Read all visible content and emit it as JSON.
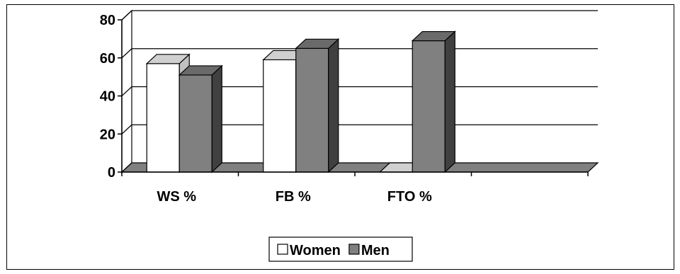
{
  "chart_data": {
    "type": "bar",
    "title": "",
    "xlabel": "",
    "ylabel": "",
    "categories": [
      "WS %",
      "FB %",
      "FTO %",
      ""
    ],
    "series": [
      {
        "name": "Women",
        "values": [
          57,
          59,
          0,
          null
        ],
        "color": "#ffffff"
      },
      {
        "name": "Men",
        "values": [
          51,
          65,
          69,
          null
        ],
        "color": "#808080"
      }
    ],
    "ylim": [
      0,
      80
    ],
    "yticks": [
      "0",
      "20",
      "40",
      "60",
      "80"
    ],
    "grid": true,
    "legend_position": "bottom",
    "style": "3d"
  }
}
